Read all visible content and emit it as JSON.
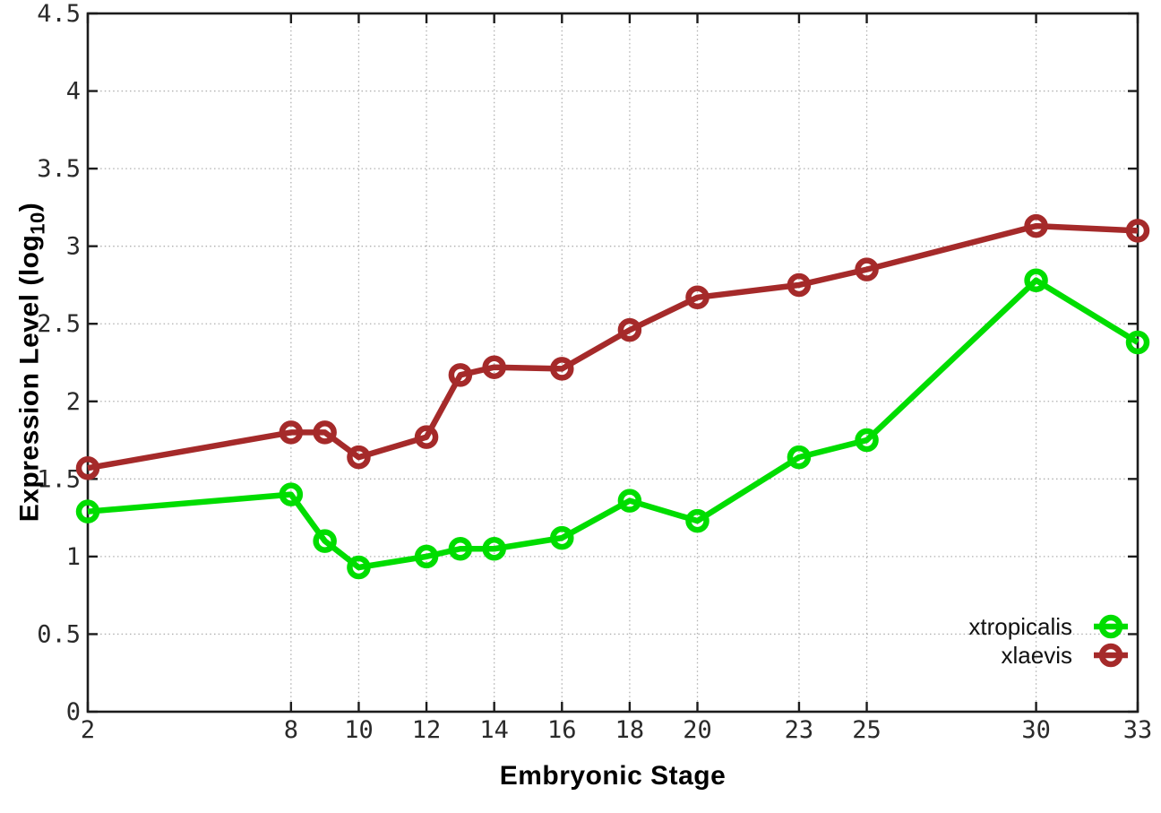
{
  "chart_data": {
    "type": "line",
    "title": "",
    "xlabel": "Embryonic Stage",
    "ylabel": "Expression Level (log10)",
    "ylabel_main": "Expression Level (log",
    "ylabel_sub": "10",
    "ylabel_suffix": ")",
    "xlim": [
      2,
      33
    ],
    "ylim": [
      0,
      4.5
    ],
    "x_ticks": [
      2,
      8,
      10,
      12,
      14,
      16,
      18,
      20,
      23,
      25,
      30,
      33
    ],
    "y_ticks": [
      0,
      0.5,
      1,
      1.5,
      2,
      2.5,
      3,
      3.5,
      4,
      4.5
    ],
    "grid": true,
    "grid_style": "dotted",
    "grid_color": "#b0b0b0",
    "frame_color": "#1c1c1c",
    "tick_label_color": "#2a2a2a",
    "marker": "open-circle",
    "x": [
      2,
      8,
      9,
      10,
      12,
      13,
      14,
      16,
      18,
      20,
      23,
      25,
      30,
      33
    ],
    "series": [
      {
        "name": "xtropicalis",
        "color": "#00dd00",
        "values": [
          1.29,
          1.4,
          1.1,
          0.93,
          1.0,
          1.05,
          1.05,
          1.12,
          1.36,
          1.23,
          1.64,
          1.75,
          2.78,
          2.38
        ]
      },
      {
        "name": "xlaevis",
        "color": "#a52a2a",
        "values": [
          1.57,
          1.8,
          1.8,
          1.64,
          1.77,
          2.17,
          2.22,
          2.21,
          2.46,
          2.67,
          2.75,
          2.85,
          3.13,
          3.1
        ]
      }
    ],
    "legend": {
      "position": "inside-bottom-right",
      "entries": [
        "xtropicalis",
        "xlaevis"
      ]
    }
  }
}
